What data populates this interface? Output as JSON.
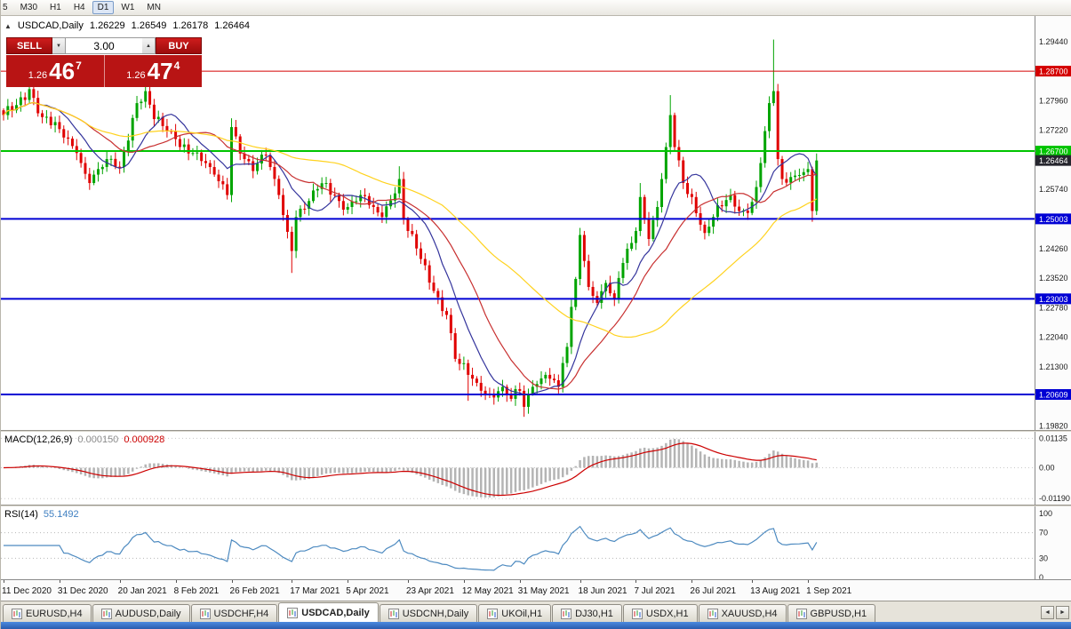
{
  "toolbar": {
    "timeframes": [
      {
        "label": "5",
        "active": false
      },
      {
        "label": "M30",
        "active": false
      },
      {
        "label": "H1",
        "active": false
      },
      {
        "label": "H4",
        "active": false
      },
      {
        "label": "D1",
        "active": true
      },
      {
        "label": "W1",
        "active": false
      },
      {
        "label": "MN",
        "active": false
      }
    ]
  },
  "chart_window": {
    "title": {
      "symbol": "USDCAD,Daily",
      "open": "1.26229",
      "high": "1.26549",
      "low": "1.26178",
      "close": "1.26464"
    },
    "one_click": {
      "toggle_glyph": "▲",
      "sell_label": "SELL",
      "buy_label": "BUY",
      "volume": "3.00",
      "spin_down": "▼",
      "spin_up": "▲",
      "bid": {
        "prefix": "1.26",
        "big": "46",
        "sup": "7"
      },
      "ask": {
        "prefix": "1.26",
        "big": "47",
        "sup": "4"
      }
    }
  },
  "chart_data": {
    "type": "candlestick",
    "symbol": "USDCAD",
    "timeframe": "Daily",
    "ohlc": {
      "open": 1.26229,
      "high": 1.26549,
      "low": 1.26178,
      "close": 1.26464
    },
    "bars_total": 190,
    "value_range": [
      1.1972,
      1.3008
    ],
    "x_labels": [
      "11 Dec 2020",
      "31 Dec 2020",
      "20 Jan 2021",
      "8 Feb 2021",
      "26 Feb 2021",
      "17 Mar 2021",
      "5 Apr 2021",
      "23 Apr 2021",
      "12 May 2021",
      "31 May 2021",
      "18 Jun 2021",
      "7 Jul 2021",
      "26 Jul 2021",
      "13 Aug 2021",
      "1 Sep 2021"
    ],
    "x_label_bar_indices": [
      0,
      13,
      27,
      40,
      53,
      67,
      80,
      94,
      107,
      120,
      134,
      147,
      160,
      174,
      187
    ],
    "y_axis_ticks": [
      1.2944,
      1.287,
      1.2796,
      1.2722,
      1.2648,
      1.2574,
      1.25,
      1.2426,
      1.2352,
      1.2278,
      1.2204,
      1.213,
      1.2056,
      1.1982
    ],
    "horizontal_lines": [
      {
        "value": 1.287,
        "label": "1.28700",
        "color": "#d40000",
        "width": 1
      },
      {
        "value": 1.267,
        "label": "1.26700",
        "color": "#00c400",
        "width": 2
      },
      {
        "value": 1.25003,
        "label": "1.25003",
        "color": "#0000d4",
        "width": 2
      },
      {
        "value": 1.23003,
        "label": "1.23003",
        "color": "#0000d4",
        "width": 2
      },
      {
        "value": 1.20609,
        "label": "1.20609",
        "color": "#0000d4",
        "width": 2
      }
    ],
    "current_price": {
      "value": 1.26464,
      "label": "1.26464",
      "tag_color": "#26262e"
    },
    "candle_colors": {
      "up": "#00a400",
      "down": "#e00000"
    },
    "estimation_note": "close-price anchors estimated from chart shape",
    "close_anchors": [
      [
        0,
        1.276
      ],
      [
        3,
        1.2785
      ],
      [
        6,
        1.2825
      ],
      [
        9,
        1.2755
      ],
      [
        13,
        1.2725
      ],
      [
        17,
        1.2665
      ],
      [
        20,
        1.259
      ],
      [
        24,
        1.265
      ],
      [
        27,
        1.263
      ],
      [
        31,
        1.279
      ],
      [
        33,
        1.282
      ],
      [
        35,
        1.275
      ],
      [
        38,
        1.272
      ],
      [
        40,
        1.27
      ],
      [
        44,
        1.2665
      ],
      [
        48,
        1.263
      ],
      [
        52,
        1.256
      ],
      [
        53,
        1.273
      ],
      [
        56,
        1.265
      ],
      [
        58,
        1.262
      ],
      [
        61,
        1.266
      ],
      [
        64,
        1.256
      ],
      [
        67,
        1.242
      ],
      [
        68,
        1.2505
      ],
      [
        71,
        1.2545
      ],
      [
        73,
        1.2575
      ],
      [
        75,
        1.259
      ],
      [
        78,
        1.2545
      ],
      [
        80,
        1.253
      ],
      [
        83,
        1.256
      ],
      [
        86,
        1.253
      ],
      [
        88,
        1.2505
      ],
      [
        92,
        1.26
      ],
      [
        93,
        1.25
      ],
      [
        94,
        1.247
      ],
      [
        97,
        1.24
      ],
      [
        100,
        1.232
      ],
      [
        103,
        1.226
      ],
      [
        105,
        1.215
      ],
      [
        108,
        1.211
      ],
      [
        110,
        1.209
      ],
      [
        113,
        1.206
      ],
      [
        116,
        1.208
      ],
      [
        118,
        1.205
      ],
      [
        120,
        1.207
      ],
      [
        121,
        1.203
      ],
      [
        123,
        1.208
      ],
      [
        126,
        1.211
      ],
      [
        129,
        1.208
      ],
      [
        131,
        1.218
      ],
      [
        132,
        1.228
      ],
      [
        133,
        1.235
      ],
      [
        134,
        1.246
      ],
      [
        135,
        1.2395
      ],
      [
        136,
        1.233
      ],
      [
        138,
        1.229
      ],
      [
        140,
        1.234
      ],
      [
        142,
        1.23
      ],
      [
        144,
        1.239
      ],
      [
        146,
        1.244
      ],
      [
        147,
        1.247
      ],
      [
        148,
        1.2555
      ],
      [
        149,
        1.25
      ],
      [
        150,
        1.245
      ],
      [
        152,
        1.253
      ],
      [
        153,
        1.26
      ],
      [
        154,
        1.268
      ],
      [
        155,
        1.276
      ],
      [
        156,
        1.268
      ],
      [
        158,
        1.259
      ],
      [
        160,
        1.2555
      ],
      [
        163,
        1.2465
      ],
      [
        165,
        1.2505
      ],
      [
        169,
        1.256
      ],
      [
        171,
        1.252
      ],
      [
        173,
        1.2515
      ],
      [
        175,
        1.258
      ],
      [
        176,
        1.264
      ],
      [
        177,
        1.272
      ],
      [
        178,
        1.279
      ],
      [
        179,
        1.282
      ],
      [
        180,
        1.265
      ],
      [
        181,
        1.26
      ],
      [
        183,
        1.2605
      ],
      [
        185,
        1.261
      ],
      [
        187,
        1.2625
      ],
      [
        188,
        1.252
      ],
      [
        189,
        1.26464
      ]
    ],
    "wick_overrides": [
      [
        6,
        "high",
        1.2838
      ],
      [
        33,
        "high",
        1.2843
      ],
      [
        53,
        "high",
        1.2752
      ],
      [
        67,
        "low",
        1.2365
      ],
      [
        92,
        "high",
        1.2632
      ],
      [
        108,
        "low",
        1.2045
      ],
      [
        121,
        "low",
        1.2005
      ],
      [
        148,
        "high",
        1.259
      ],
      [
        155,
        "high",
        1.281
      ],
      [
        179,
        "high",
        1.2949
      ],
      [
        188,
        "low",
        1.2493
      ]
    ],
    "moving_averages": [
      {
        "period": 10,
        "color": "#34349c"
      },
      {
        "period": 20,
        "color": "#c83030"
      },
      {
        "period": 50,
        "color": "#ffd21e"
      }
    ],
    "indicators": {
      "macd": {
        "label": "MACD(12,26,9)",
        "values": [
          "0.000150",
          "0.000928"
        ],
        "params": [
          12,
          26,
          9
        ],
        "scale_labels": [
          "0.01135",
          "0.00",
          "-0.01190"
        ],
        "hist_color": "#b4b4b4",
        "signal_color": "#cc0000"
      },
      "rsi": {
        "label": "RSI(14)",
        "value": "55.1492",
        "period": 14,
        "scale_labels": [
          100,
          70,
          30,
          0
        ],
        "levels": [
          70,
          30
        ],
        "range": [
          0,
          100
        ],
        "line_color": "#4d8ac0",
        "level_color": "#b8b8b8"
      }
    }
  },
  "bottom_tabs": {
    "scroll_left": "◄",
    "scroll_right": "►",
    "tabs": [
      {
        "label": "EURUSD,H4",
        "active": false
      },
      {
        "label": "AUDUSD,Daily",
        "active": false
      },
      {
        "label": "USDCHF,H4",
        "active": false
      },
      {
        "label": "USDCAD,Daily",
        "active": true
      },
      {
        "label": "USDCNH,Daily",
        "active": false
      },
      {
        "label": "UKOil,H1",
        "active": false
      },
      {
        "label": "DJ30,H1",
        "active": false
      },
      {
        "label": "USDX,H1",
        "active": false
      },
      {
        "label": "XAUUSD,H4",
        "active": false
      },
      {
        "label": "GBPUSD,H1",
        "active": false
      }
    ]
  }
}
